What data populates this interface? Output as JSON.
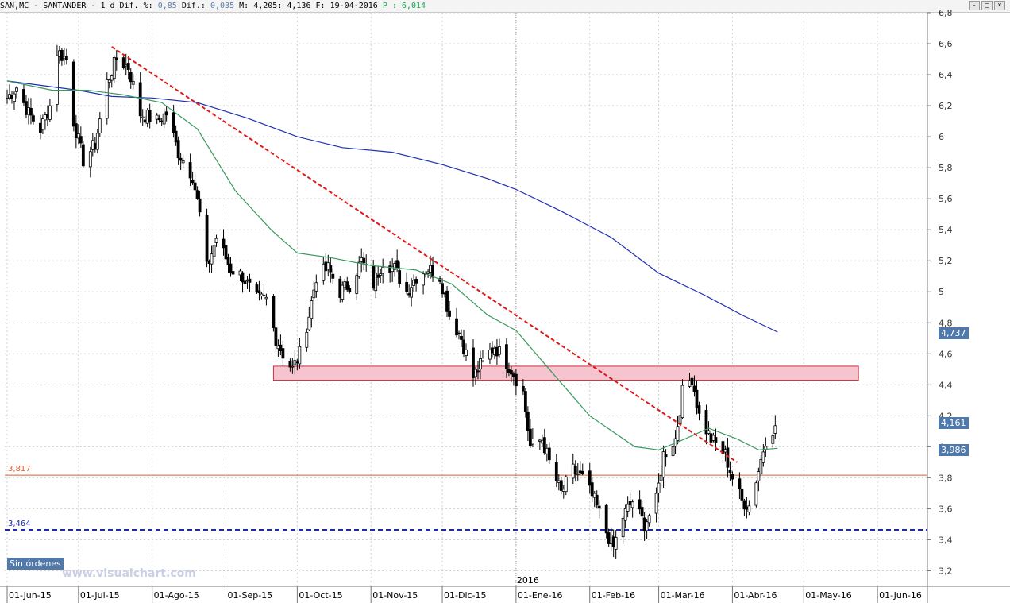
{
  "header": {
    "symbol": "SAN,MC",
    "name": "SANTANDER",
    "period": "1 d",
    "dif_pct_label": "Dif. %:",
    "dif_pct": "0,85",
    "dif_label": "Dif.:",
    "dif": "0,035",
    "max_label": "M:",
    "max": "4,205",
    "close": "4,136",
    "date_label": "F:",
    "date": "19-04-2016",
    "p_label": "P :",
    "p_value": "6,014",
    "window_buttons": [
      "-",
      "□",
      "×"
    ]
  },
  "badges": {
    "ma_long": "4,737",
    "last": "4,161",
    "ma_short": "3,986",
    "orders": "Sin órdenes"
  },
  "watermark": "www.visualchart.com",
  "year_marker": "2016",
  "colors": {
    "candle": "#000000",
    "ma_long": "#1f2fb0",
    "ma_short": "#3a9a5e",
    "trendline": "#e01818",
    "resistance_fill": "#f6c4cf",
    "resistance_border": "#d03040",
    "support_orange": "#e05a2a",
    "support_blue": "#1a2aa8",
    "badge": "#4f79aa"
  },
  "chart_data": {
    "type": "candlestick",
    "ylim": [
      3.1,
      6.8
    ],
    "yticks": [
      3.2,
      3.4,
      3.6,
      3.8,
      4,
      4.2,
      4.4,
      4.6,
      4.8,
      5,
      5.2,
      5.4,
      5.6,
      5.8,
      6,
      6.2,
      6.4,
      6.6,
      6.8
    ],
    "ytick_labels": [
      "3,2",
      "3,4",
      "3,6",
      "3,8",
      "4",
      "4,2",
      "4,4",
      "4,6",
      "4,8",
      "5",
      "5,2",
      "5,4",
      "5,6",
      "5,8",
      "6",
      "6,2",
      "6,4",
      "6,6",
      "6,8"
    ],
    "xlim": [
      "2015-05-31",
      "2016-06-22"
    ],
    "xticks": [
      "2015-06-01",
      "2015-07-01",
      "2015-08-01",
      "2015-09-01",
      "2015-10-01",
      "2015-11-01",
      "2015-12-01",
      "2016-01-01",
      "2016-02-01",
      "2016-03-01",
      "2016-04-01",
      "2016-05-01",
      "2016-06-01"
    ],
    "xtick_labels": [
      "01-Jun-15",
      "01-Jul-15",
      "01-Ago-15",
      "01-Sep-15",
      "01-Oct-15",
      "01-Nov-15",
      "01-Dic-15",
      "01-Ene-16",
      "01-Feb-16",
      "01-Mar-16",
      "01-Abr-16",
      "01-May-16",
      "01-Jun-16"
    ],
    "ohlc_anchor_closes": [
      [
        "2015-06-01",
        6.25
      ],
      [
        "2015-06-05",
        6.32
      ],
      [
        "2015-06-10",
        6.15
      ],
      [
        "2015-06-15",
        6.05
      ],
      [
        "2015-06-19",
        6.2
      ],
      [
        "2015-06-22",
        6.55
      ],
      [
        "2015-06-26",
        6.5
      ],
      [
        "2015-06-29",
        6.1
      ],
      [
        "2015-07-03",
        5.85
      ],
      [
        "2015-07-08",
        5.95
      ],
      [
        "2015-07-13",
        6.35
      ],
      [
        "2015-07-17",
        6.5
      ],
      [
        "2015-07-22",
        6.45
      ],
      [
        "2015-07-27",
        6.15
      ],
      [
        "2015-08-03",
        6.1
      ],
      [
        "2015-08-07",
        6.15
      ],
      [
        "2015-08-12",
        5.9
      ],
      [
        "2015-08-18",
        5.75
      ],
      [
        "2015-08-21",
        5.5
      ],
      [
        "2015-08-24",
        5.15
      ],
      [
        "2015-08-28",
        5.35
      ],
      [
        "2015-09-03",
        5.15
      ],
      [
        "2015-09-08",
        5.1
      ],
      [
        "2015-09-14",
        4.95
      ],
      [
        "2015-09-18",
        4.95
      ],
      [
        "2015-09-22",
        4.7
      ],
      [
        "2015-09-25",
        4.6
      ],
      [
        "2015-09-29",
        4.5
      ],
      [
        "2015-10-02",
        4.6
      ],
      [
        "2015-10-06",
        4.85
      ],
      [
        "2015-10-09",
        5.1
      ],
      [
        "2015-10-14",
        5.15
      ],
      [
        "2015-10-19",
        5.0
      ],
      [
        "2015-10-23",
        5.05
      ],
      [
        "2015-10-28",
        5.2
      ],
      [
        "2015-11-02",
        5.05
      ],
      [
        "2015-11-06",
        5.2
      ],
      [
        "2015-11-11",
        5.15
      ],
      [
        "2015-11-16",
        5.0
      ],
      [
        "2015-11-20",
        5.1
      ],
      [
        "2015-11-25",
        5.15
      ],
      [
        "2015-11-30",
        5.1
      ],
      [
        "2015-12-04",
        4.85
      ],
      [
        "2015-12-09",
        4.7
      ],
      [
        "2015-12-14",
        4.45
      ],
      [
        "2015-12-18",
        4.55
      ],
      [
        "2015-12-23",
        4.65
      ],
      [
        "2015-12-30",
        4.5
      ],
      [
        "2016-01-04",
        4.35
      ],
      [
        "2016-01-07",
        4.0
      ],
      [
        "2016-01-12",
        4.05
      ],
      [
        "2016-01-15",
        3.9
      ],
      [
        "2016-01-20",
        3.7
      ],
      [
        "2016-01-25",
        3.85
      ],
      [
        "2016-01-29",
        3.8
      ],
      [
        "2016-02-03",
        3.65
      ],
      [
        "2016-02-08",
        3.45
      ],
      [
        "2016-02-11",
        3.35
      ],
      [
        "2016-02-15",
        3.55
      ],
      [
        "2016-02-19",
        3.65
      ],
      [
        "2016-02-24",
        3.5
      ],
      [
        "2016-02-29",
        3.65
      ],
      [
        "2016-03-03",
        3.95
      ],
      [
        "2016-03-08",
        4.05
      ],
      [
        "2016-03-11",
        4.35
      ],
      [
        "2016-03-15",
        4.45
      ],
      [
        "2016-03-18",
        4.2
      ],
      [
        "2016-03-23",
        4.05
      ],
      [
        "2016-03-29",
        3.95
      ],
      [
        "2016-04-01",
        3.8
      ],
      [
        "2016-04-05",
        3.65
      ],
      [
        "2016-04-08",
        3.62
      ],
      [
        "2016-04-12",
        3.85
      ],
      [
        "2016-04-15",
        4.05
      ],
      [
        "2016-04-19",
        4.136
      ]
    ],
    "ma_long": [
      [
        "2015-06-01",
        6.36
      ],
      [
        "2015-07-01",
        6.3
      ],
      [
        "2015-07-15",
        6.26
      ],
      [
        "2015-08-01",
        6.25
      ],
      [
        "2015-08-20",
        6.22
      ],
      [
        "2015-09-10",
        6.12
      ],
      [
        "2015-10-01",
        6.0
      ],
      [
        "2015-10-20",
        5.93
      ],
      [
        "2015-11-10",
        5.9
      ],
      [
        "2015-12-01",
        5.82
      ],
      [
        "2015-12-20",
        5.73
      ],
      [
        "2016-01-01",
        5.66
      ],
      [
        "2016-01-20",
        5.52
      ],
      [
        "2016-02-10",
        5.35
      ],
      [
        "2016-03-01",
        5.12
      ],
      [
        "2016-03-20",
        4.98
      ],
      [
        "2016-04-05",
        4.85
      ],
      [
        "2016-04-20",
        4.74
      ]
    ],
    "ma_short": [
      [
        "2015-06-01",
        6.36
      ],
      [
        "2015-06-20",
        6.3
      ],
      [
        "2015-07-05",
        6.3
      ],
      [
        "2015-07-20",
        6.27
      ],
      [
        "2015-08-05",
        6.22
      ],
      [
        "2015-08-20",
        6.05
      ],
      [
        "2015-09-05",
        5.65
      ],
      [
        "2015-09-20",
        5.4
      ],
      [
        "2015-10-01",
        5.25
      ],
      [
        "2015-10-15",
        5.22
      ],
      [
        "2015-11-01",
        5.17
      ],
      [
        "2015-11-20",
        5.14
      ],
      [
        "2015-12-05",
        5.05
      ],
      [
        "2015-12-20",
        4.85
      ],
      [
        "2016-01-01",
        4.75
      ],
      [
        "2016-01-15",
        4.5
      ],
      [
        "2016-02-01",
        4.2
      ],
      [
        "2016-02-20",
        4.0
      ],
      [
        "2016-03-01",
        3.98
      ],
      [
        "2016-03-12",
        4.05
      ],
      [
        "2016-03-22",
        4.12
      ],
      [
        "2016-04-03",
        4.05
      ],
      [
        "2016-04-12",
        3.98
      ],
      [
        "2016-04-20",
        3.99
      ]
    ],
    "trendline": {
      "from": [
        "2015-07-15",
        6.58
      ],
      "to": [
        "2016-04-03",
        3.9
      ]
    },
    "resistance_zone": {
      "x_from": "2015-09-21",
      "x_to": "2016-05-24",
      "y_low": 4.43,
      "y_high": 4.52
    },
    "support_levels": [
      {
        "label": "3,817",
        "value": 3.817,
        "color": "#e05a2a",
        "style": "solid"
      },
      {
        "label": "3,464",
        "value": 3.464,
        "color": "#1a2aa8",
        "style": "dashed"
      }
    ]
  }
}
